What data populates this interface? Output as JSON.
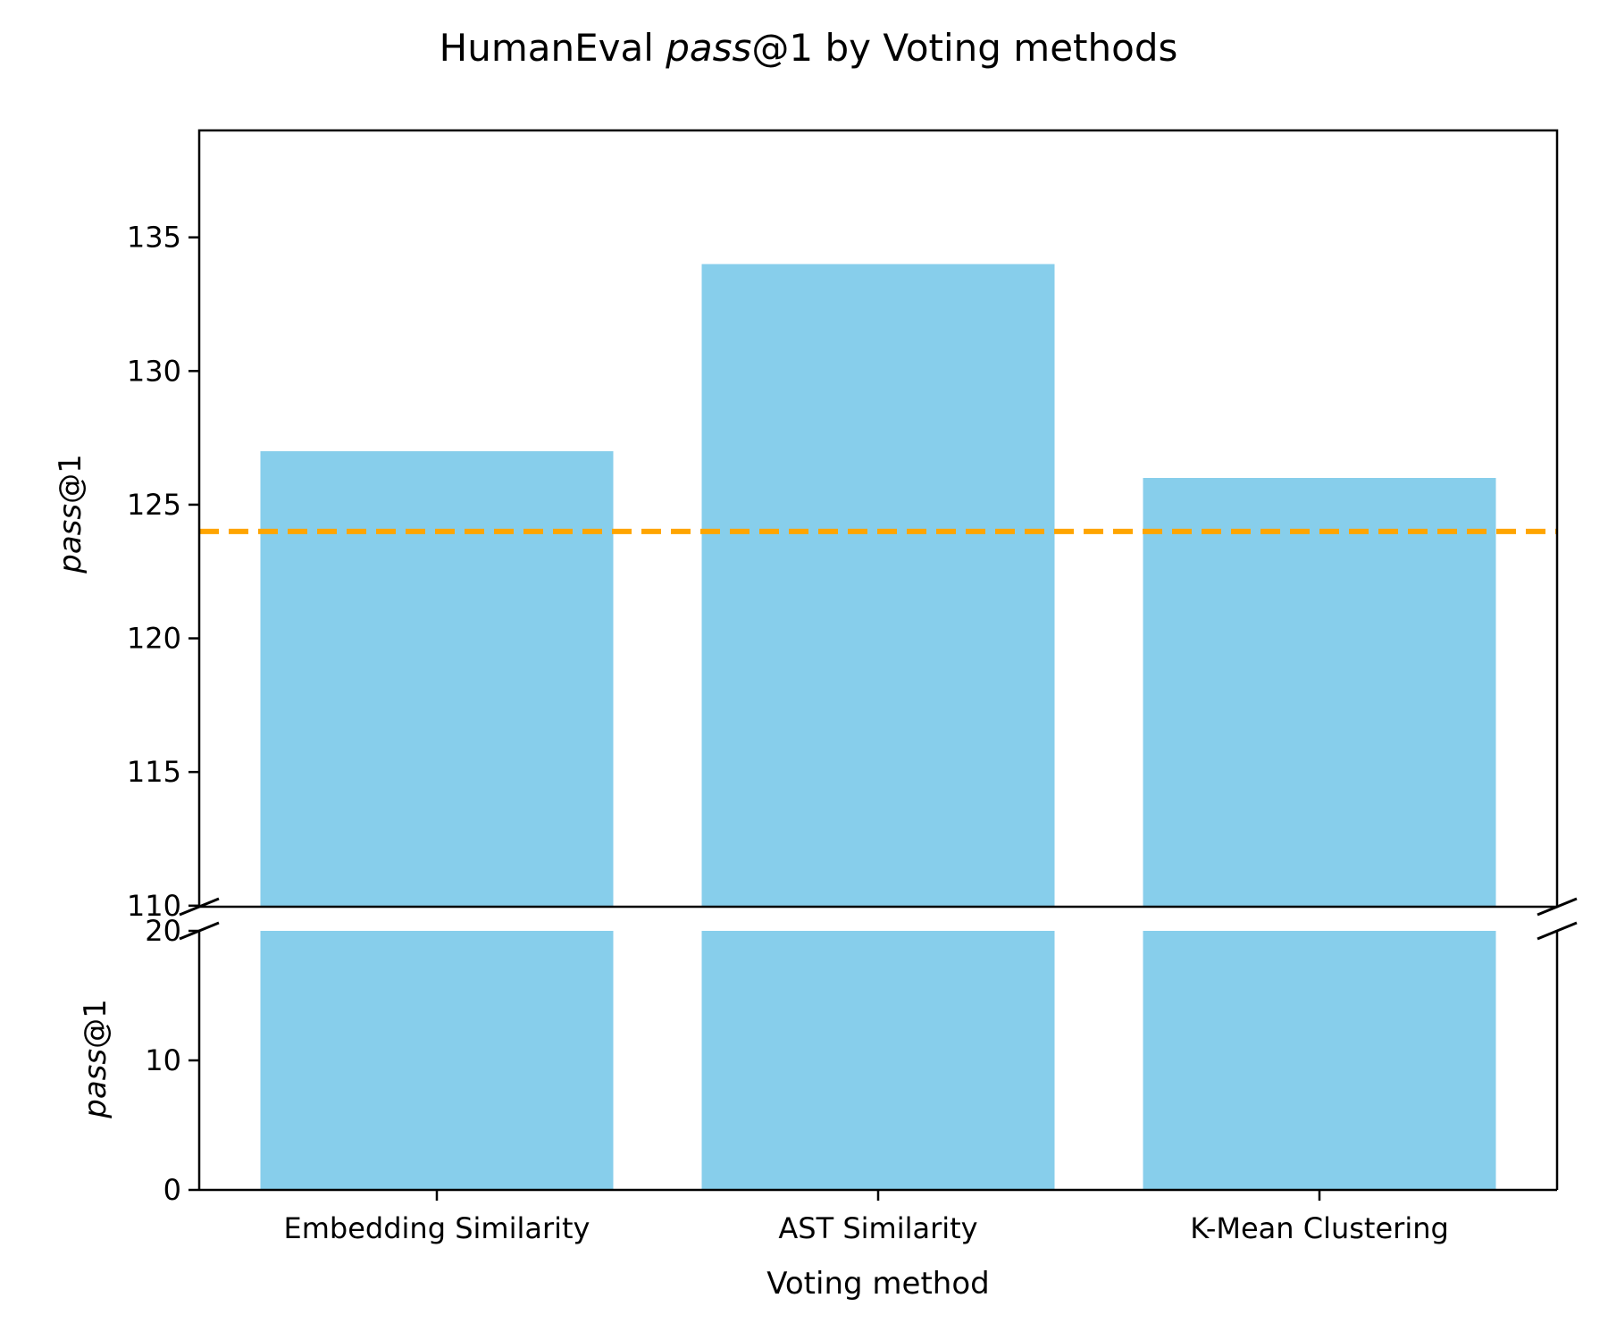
{
  "chart_data": {
    "type": "bar",
    "title": {
      "prefix": "HumanEval ",
      "italic": "pass",
      "suffix": "@1 by Voting methods"
    },
    "xlabel": "Voting method",
    "ylabel": {
      "italic": "pass",
      "suffix": "@1"
    },
    "categories": [
      "Embedding Similarity",
      "AST Similarity",
      "K-Mean Clustering"
    ],
    "values": [
      127,
      134,
      126
    ],
    "bar_color": "#87ceeb",
    "broken_axis": true,
    "upper_ylim": [
      109.96,
      139
    ],
    "upper_yticks": [
      "110",
      "115",
      "120",
      "125",
      "130",
      "135"
    ],
    "lower_ylim": [
      0,
      20
    ],
    "lower_yticks": [
      "0",
      "10",
      "20"
    ],
    "reference_line": {
      "value": 124,
      "style": "dashed",
      "color": "#ffa500"
    },
    "grid": false
  }
}
